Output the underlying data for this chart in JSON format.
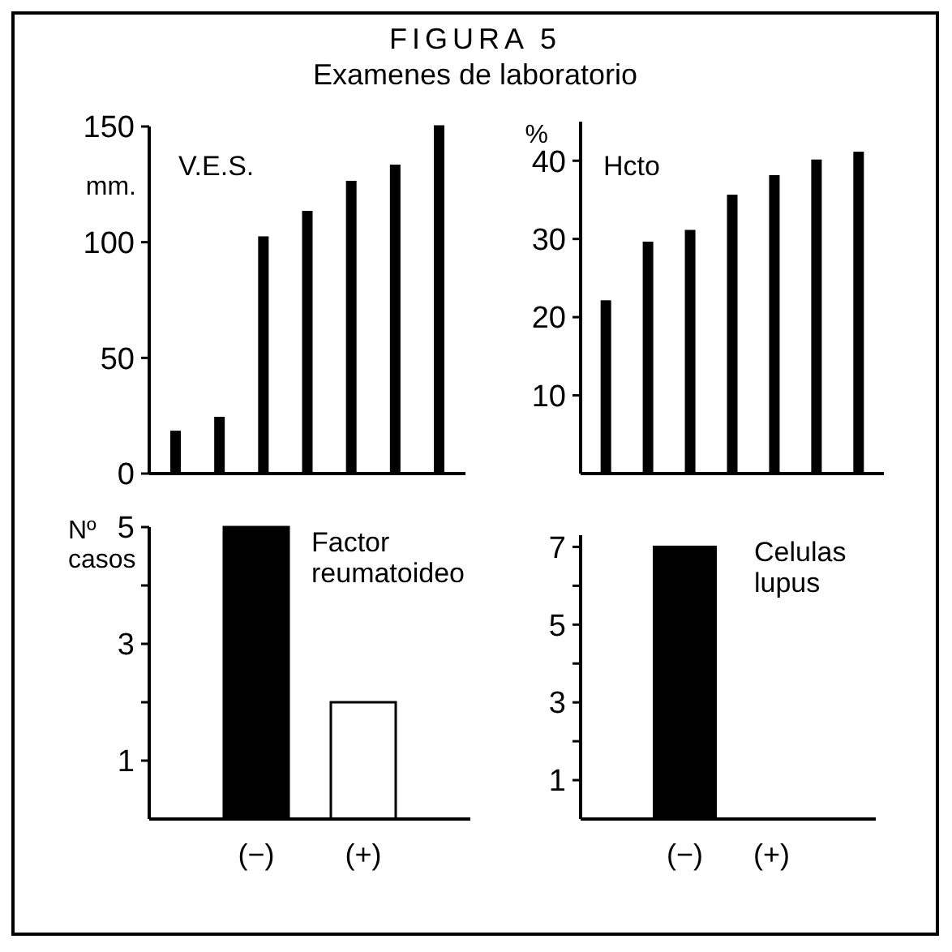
{
  "chart_data": [
    {
      "type": "bar",
      "title": "FIGURA 5",
      "subtitle": "Examenes de laboratorio",
      "ylabel": "mm.",
      "annotations": [
        "V.E.S."
      ],
      "categories": [
        null,
        null,
        null,
        null,
        null,
        null,
        null
      ],
      "values": [
        18,
        24,
        102,
        113,
        126,
        133,
        150
      ],
      "color": "#000000",
      "ylim": [
        0,
        150
      ],
      "yticks": [
        0,
        50,
        100,
        150
      ],
      "grid": false
    },
    {
      "type": "bar",
      "ylabel": "%",
      "annotations": [
        "Hcto"
      ],
      "categories": [
        null,
        null,
        null,
        null,
        null,
        null,
        null
      ],
      "values": [
        22,
        29.5,
        31,
        35.5,
        38,
        40,
        41
      ],
      "color": "#000000",
      "ylim": [
        0,
        45
      ],
      "yticks": [
        10,
        20,
        30,
        40
      ],
      "grid": false
    },
    {
      "type": "bar",
      "ylabel": "Nº casos",
      "annotations": [
        "Factor reumatoideo"
      ],
      "categories": [
        "(−)",
        "(+)"
      ],
      "values": [
        5,
        2
      ],
      "colors": [
        "#000000",
        "#ffffff"
      ],
      "ylim": [
        0,
        5
      ],
      "yticks": [
        1,
        {
          "value": 2,
          "label": null
        },
        3,
        {
          "value": 4,
          "label": null
        },
        5
      ],
      "grid": false
    },
    {
      "type": "bar",
      "annotations": [
        "Celulas lupus"
      ],
      "categories": [
        "(−)",
        "(+)"
      ],
      "values": [
        7,
        0
      ],
      "colors": [
        "#000000",
        "#ffffff"
      ],
      "ylim": [
        0,
        7.3
      ],
      "yticks": [
        1,
        {
          "value": 2,
          "label": null
        },
        3,
        {
          "value": 4,
          "label": null
        },
        5,
        {
          "value": 6,
          "label": null
        },
        7
      ],
      "grid": false
    }
  ]
}
